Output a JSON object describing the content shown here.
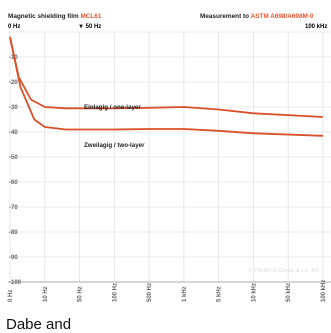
{
  "header": {
    "left_prefix": "Magnetic shielding film ",
    "left_highlight": "MCL61",
    "right_prefix": "Measurement to ",
    "right_highlight": "ASTM A698/A698M-0",
    "marker_0hz": "0 Hz",
    "marker_50hz": "▼ 50 Hz",
    "marker_100khz": "100 kHz"
  },
  "colors": {
    "accent": "#e8542a",
    "series": "#d9502b",
    "grid": "#e4e4e4",
    "axis": "#999999"
  },
  "copyright": "© VSHIELD GmbH & Co. KG",
  "bottom_text": "Dabe and",
  "chart_data": {
    "type": "line",
    "xlabel": "",
    "ylabel": "",
    "yticks": [
      0,
      -10,
      -20,
      -30,
      -40,
      -50,
      -60,
      -70,
      -80,
      -90,
      -100
    ],
    "ytick_labels": [
      "0",
      "-10",
      "-20",
      "-30",
      "-40",
      "-50",
      "-60",
      "-70",
      "-80",
      "-90",
      "-100"
    ],
    "ylim": [
      -100,
      0
    ],
    "xtick_labels": [
      "0 Hz",
      "10 Hz",
      "50 Hz",
      "100 Hz",
      "500 Hz",
      "1 kHz",
      "5 kHz",
      "10 kHz",
      "50 kHz",
      "100 kHz"
    ],
    "grid": true,
    "series": [
      {
        "name": "Einlagig / one-layer",
        "points": [
          [
            0,
            -2
          ],
          [
            0.25,
            -18
          ],
          [
            0.6,
            -27
          ],
          [
            1.0,
            -30
          ],
          [
            1.6,
            -30.5
          ],
          [
            3,
            -30.5
          ],
          [
            4,
            -30.3
          ],
          [
            5,
            -30
          ],
          [
            6,
            -31
          ],
          [
            7,
            -32.5
          ],
          [
            9,
            -34
          ]
        ]
      },
      {
        "name": "Zweilagig / two-layer",
        "points": [
          [
            0,
            -2
          ],
          [
            0.3,
            -22
          ],
          [
            0.7,
            -35
          ],
          [
            1.0,
            -38
          ],
          [
            1.6,
            -39
          ],
          [
            3,
            -39
          ],
          [
            4,
            -38.8
          ],
          [
            5,
            -38.8
          ],
          [
            6,
            -39.5
          ],
          [
            7,
            -40.5
          ],
          [
            9,
            -41.5
          ]
        ]
      }
    ]
  }
}
